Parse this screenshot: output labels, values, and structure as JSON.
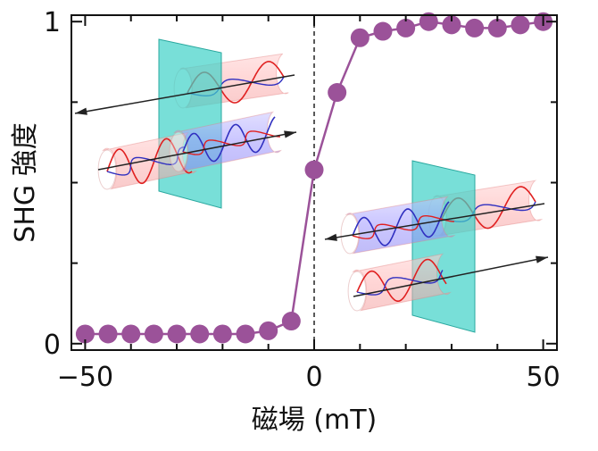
{
  "chart_data": {
    "type": "scatter",
    "xlabel": "磁場 (mT)",
    "ylabel": "SHG 強度",
    "xlim": [
      -53,
      53
    ],
    "ylim": [
      -0.02,
      1.02
    ],
    "x_ticks": [
      -50,
      0,
      50
    ],
    "x_tick_labels": [
      "−50",
      "0",
      "50"
    ],
    "y_ticks": [
      0,
      1
    ],
    "y_tick_labels": [
      "0",
      "1"
    ],
    "reference_line_x": 0,
    "series": [
      {
        "color": "#9b5299",
        "markers": "filled-circle",
        "connected": true,
        "x": [
          -50,
          -45,
          -40,
          -35,
          -30,
          -25,
          -20,
          -15,
          -10,
          -5,
          0,
          5,
          10,
          15,
          20,
          25,
          30,
          35,
          40,
          45,
          50
        ],
        "y": [
          0.03,
          0.03,
          0.03,
          0.03,
          0.03,
          0.03,
          0.03,
          0.03,
          0.04,
          0.07,
          0.54,
          0.78,
          0.95,
          0.97,
          0.98,
          1.0,
          0.99,
          0.98,
          0.98,
          0.99,
          1.0
        ]
      }
    ],
    "insets": [
      {
        "direction": "left",
        "stack": "upper-left"
      },
      {
        "direction": "right",
        "stack": "lower-right"
      }
    ]
  }
}
